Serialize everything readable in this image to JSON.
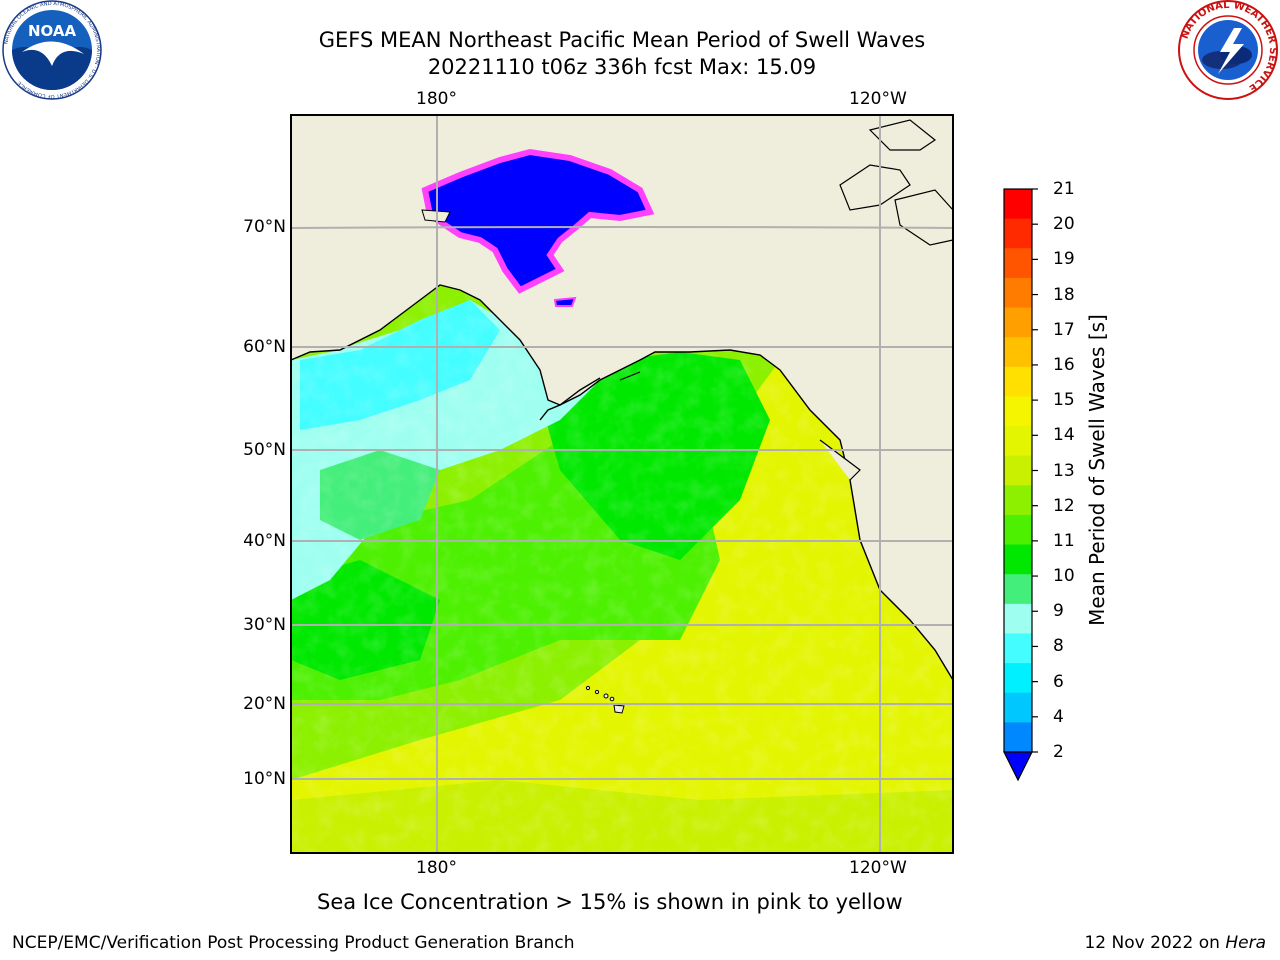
{
  "title": {
    "line1": "GEFS MEAN Northeast Pacific Mean Period of Swell Waves",
    "line2": "20221110 t06z 336h fcst   Max: 15.09"
  },
  "axes": {
    "lon_labels_top": [
      "180°",
      "120°W"
    ],
    "lon_labels_bottom": [
      "180°",
      "120°W"
    ],
    "lat_labels": [
      "70°N",
      "60°N",
      "50°N",
      "40°N",
      "30°N",
      "20°N",
      "10°N"
    ]
  },
  "colorbar": {
    "label": "Mean Period of Swell Waves [s]",
    "ticks": [
      "21",
      "20",
      "19",
      "18",
      "17",
      "16",
      "15",
      "14",
      "13",
      "12",
      "11",
      "10",
      "9",
      "8",
      "6",
      "4",
      "2"
    ],
    "colors": [
      "#ff0000",
      "#ff2a00",
      "#ff5500",
      "#ff7c00",
      "#ff9f00",
      "#ffc000",
      "#ffe000",
      "#f5f500",
      "#e3f500",
      "#c9f000",
      "#8cf000",
      "#4cf000",
      "#00e800",
      "#44ee7a",
      "#9efff0",
      "#44fdff",
      "#00f0ff",
      "#00c8ff",
      "#0088ff"
    ],
    "extend_color": "#0000ff"
  },
  "map_colors": {
    "land": "#efeddb",
    "ice": "#0000ff",
    "ice_edge": "#ff40ff",
    "swell_low": "#44fdff",
    "swell_mid": "#00e800",
    "swell_high": "#e3f500"
  },
  "footer": {
    "ice_note": "Sea Ice Concentration > 15% is shown in pink to yellow",
    "credit_left": "NCEP/EMC/Verification Post Processing Product Generation Branch",
    "credit_date": "12 Nov 2022 on",
    "credit_host": "Hera"
  },
  "logos": {
    "left": "noaa-logo",
    "right": "nws-logo",
    "left_ring_text": "NATIONAL OCEANIC AND ATMOSPHERIC ADMINISTRATION · U.S. DEPARTMENT OF COMMERCE",
    "left_center_text": "NOAA",
    "right_ring_text": "NATIONAL WEATHER SERVICE"
  }
}
